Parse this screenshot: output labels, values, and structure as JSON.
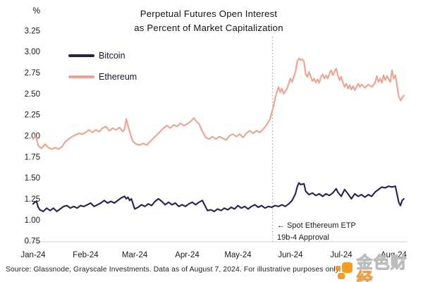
{
  "source_note": "Source: Glassnode, Grayscale Investments. Data as of August 7, 2024. For illustrative purposes only.",
  "watermark": {
    "text_main": "金色财",
    "text_accent": "经",
    "accent_color": "#f79c1b",
    "stroke_color": "#bcbcbc"
  },
  "chart_data": {
    "type": "line",
    "title": "Perpetual Futures Open Interest as Percent of Market Capitalization",
    "title_lines": [
      "Perpetual Futures Open Interest",
      "as Percent of Market Capitalization"
    ],
    "ylabel": "%",
    "xlabel": "",
    "ylim": [
      0.75,
      3.25
    ],
    "grid": false,
    "legend_position": "upper-left",
    "x_unit": "days since Jan 1, 2024",
    "y_ticks": [
      "3.25",
      "3.00",
      "2.75",
      "2.50",
      "2.25",
      "2.00",
      "1.75",
      "1.50",
      "1.25",
      "1.00",
      "0.75"
    ],
    "x_ticks": [
      {
        "label": "Jan-24",
        "day": 0
      },
      {
        "label": "Feb-24",
        "day": 31
      },
      {
        "label": "Mar-24",
        "day": 60
      },
      {
        "label": "Apr-24",
        "day": 91
      },
      {
        "label": "May-24",
        "day": 121
      },
      {
        "label": "Jun-24",
        "day": 152
      },
      {
        "label": "Jul-24",
        "day": 182
      },
      {
        "label": "Aug-24",
        "day": 213
      }
    ],
    "guideline": {
      "day": 141.5,
      "date": "May 23, 2024",
      "annotation": [
        "← Spot Ethereum ETP",
        "19b-4 Approval"
      ]
    },
    "series": [
      {
        "name": "Bitcoin",
        "color": "#262250",
        "points": [
          [
            0,
            1.19
          ],
          [
            1,
            1.21
          ],
          [
            2,
            1.22
          ],
          [
            3,
            1.15
          ],
          [
            4,
            1.12
          ],
          [
            6,
            1.1
          ],
          [
            8,
            1.14
          ],
          [
            10,
            1.11
          ],
          [
            12,
            1.14
          ],
          [
            14,
            1.1
          ],
          [
            16,
            1.13
          ],
          [
            18,
            1.16
          ],
          [
            20,
            1.17
          ],
          [
            22,
            1.14
          ],
          [
            24,
            1.16
          ],
          [
            26,
            1.14
          ],
          [
            28,
            1.17
          ],
          [
            30,
            1.16
          ],
          [
            32,
            1.18
          ],
          [
            34,
            1.2
          ],
          [
            36,
            1.16
          ],
          [
            38,
            1.18
          ],
          [
            40,
            1.2
          ],
          [
            42,
            1.23
          ],
          [
            44,
            1.2
          ],
          [
            46,
            1.22
          ],
          [
            48,
            1.2
          ],
          [
            50,
            1.23
          ],
          [
            52,
            1.26
          ],
          [
            54,
            1.28
          ],
          [
            55,
            1.25
          ],
          [
            56,
            1.27
          ],
          [
            57,
            1.23
          ],
          [
            58,
            1.25
          ],
          [
            59,
            1.19
          ],
          [
            60,
            1.13
          ],
          [
            62,
            1.15
          ],
          [
            64,
            1.18
          ],
          [
            66,
            1.16
          ],
          [
            68,
            1.19
          ],
          [
            70,
            1.17
          ],
          [
            72,
            1.22
          ],
          [
            74,
            1.25
          ],
          [
            76,
            1.22
          ],
          [
            78,
            1.18
          ],
          [
            80,
            1.21
          ],
          [
            82,
            1.18
          ],
          [
            84,
            1.2
          ],
          [
            86,
            1.16
          ],
          [
            88,
            1.18
          ],
          [
            90,
            1.16
          ],
          [
            92,
            1.19
          ],
          [
            94,
            1.21
          ],
          [
            96,
            1.18
          ],
          [
            98,
            1.21
          ],
          [
            100,
            1.23
          ],
          [
            101,
            1.19
          ],
          [
            103,
            1.11
          ],
          [
            105,
            1.12
          ],
          [
            107,
            1.1
          ],
          [
            109,
            1.13
          ],
          [
            111,
            1.11
          ],
          [
            113,
            1.14
          ],
          [
            115,
            1.12
          ],
          [
            117,
            1.15
          ],
          [
            119,
            1.13
          ],
          [
            121,
            1.17
          ],
          [
            123,
            1.14
          ],
          [
            125,
            1.16
          ],
          [
            127,
            1.13
          ],
          [
            129,
            1.16
          ],
          [
            131,
            1.18
          ],
          [
            133,
            1.15
          ],
          [
            135,
            1.17
          ],
          [
            137,
            1.14
          ],
          [
            139,
            1.16
          ],
          [
            141,
            1.15
          ],
          [
            143,
            1.17
          ],
          [
            145,
            1.16
          ],
          [
            147,
            1.18
          ],
          [
            149,
            1.16
          ],
          [
            151,
            1.19
          ],
          [
            153,
            1.23
          ],
          [
            155,
            1.31
          ],
          [
            156,
            1.39
          ],
          [
            157,
            1.44
          ],
          [
            158,
            1.42
          ],
          [
            160,
            1.43
          ],
          [
            161,
            1.34
          ],
          [
            163,
            1.3
          ],
          [
            165,
            1.32
          ],
          [
            167,
            1.29
          ],
          [
            169,
            1.31
          ],
          [
            171,
            1.28
          ],
          [
            173,
            1.31
          ],
          [
            175,
            1.29
          ],
          [
            177,
            1.32
          ],
          [
            179,
            1.37
          ],
          [
            180,
            1.33
          ],
          [
            182,
            1.28
          ],
          [
            184,
            1.36
          ],
          [
            186,
            1.31
          ],
          [
            188,
            1.25
          ],
          [
            190,
            1.31
          ],
          [
            192,
            1.28
          ],
          [
            194,
            1.3
          ],
          [
            196,
            1.27
          ],
          [
            198,
            1.3
          ],
          [
            200,
            1.28
          ],
          [
            202,
            1.33
          ],
          [
            204,
            1.36
          ],
          [
            206,
            1.39
          ],
          [
            208,
            1.38
          ],
          [
            210,
            1.4
          ],
          [
            212,
            1.39
          ],
          [
            214,
            1.4
          ],
          [
            216,
            1.21
          ],
          [
            217,
            1.17
          ],
          [
            218,
            1.23
          ],
          [
            219,
            1.25
          ]
        ]
      },
      {
        "name": "Ethereum",
        "color": "#f2a28e",
        "points": [
          [
            0,
            1.96
          ],
          [
            1,
            2.0
          ],
          [
            2,
            1.97
          ],
          [
            3,
            1.88
          ],
          [
            5,
            1.85
          ],
          [
            7,
            1.9
          ],
          [
            9,
            1.86
          ],
          [
            11,
            1.84
          ],
          [
            13,
            1.86
          ],
          [
            15,
            1.84
          ],
          [
            17,
            1.87
          ],
          [
            19,
            1.93
          ],
          [
            21,
            1.96
          ],
          [
            23,
            1.99
          ],
          [
            25,
            2.01
          ],
          [
            27,
            2.03
          ],
          [
            29,
            2.02
          ],
          [
            31,
            2.04
          ],
          [
            33,
            2.07
          ],
          [
            35,
            2.04
          ],
          [
            37,
            2.07
          ],
          [
            39,
            2.05
          ],
          [
            41,
            2.09
          ],
          [
            43,
            2.11
          ],
          [
            45,
            2.06
          ],
          [
            47,
            2.09
          ],
          [
            49,
            2.07
          ],
          [
            51,
            2.1
          ],
          [
            53,
            2.05
          ],
          [
            54,
            2.08
          ],
          [
            55,
            2.2
          ],
          [
            56,
            2.12
          ],
          [
            57,
            2.05
          ],
          [
            58,
            1.98
          ],
          [
            59,
            1.93
          ],
          [
            61,
            1.9
          ],
          [
            63,
            1.89
          ],
          [
            65,
            1.91
          ],
          [
            67,
            1.89
          ],
          [
            69,
            1.93
          ],
          [
            71,
            1.97
          ],
          [
            73,
            2.01
          ],
          [
            75,
            2.05
          ],
          [
            77,
            2.09
          ],
          [
            79,
            2.12
          ],
          [
            81,
            2.09
          ],
          [
            83,
            2.13
          ],
          [
            85,
            2.11
          ],
          [
            87,
            2.15
          ],
          [
            89,
            2.12
          ],
          [
            91,
            2.14
          ],
          [
            93,
            2.17
          ],
          [
            95,
            2.21
          ],
          [
            96,
            2.18
          ],
          [
            98,
            2.14
          ],
          [
            100,
            2.05
          ],
          [
            102,
            1.98
          ],
          [
            104,
            1.96
          ],
          [
            106,
            1.99
          ],
          [
            108,
            1.96
          ],
          [
            110,
            1.99
          ],
          [
            112,
            1.97
          ],
          [
            114,
            1.95
          ],
          [
            116,
            2.0
          ],
          [
            118,
            2.02
          ],
          [
            120,
            1.99
          ],
          [
            122,
            2.02
          ],
          [
            124,
            1.98
          ],
          [
            126,
            2.03
          ],
          [
            128,
            2.06
          ],
          [
            130,
            2.03
          ],
          [
            132,
            2.06
          ],
          [
            134,
            2.04
          ],
          [
            136,
            2.08
          ],
          [
            138,
            2.13
          ],
          [
            140,
            2.2
          ],
          [
            141,
            2.28
          ],
          [
            142,
            2.35
          ],
          [
            143,
            2.45
          ],
          [
            144,
            2.52
          ],
          [
            145,
            2.58
          ],
          [
            146,
            2.52
          ],
          [
            147,
            2.56
          ],
          [
            148,
            2.5
          ],
          [
            150,
            2.56
          ],
          [
            151,
            2.62
          ],
          [
            152,
            2.68
          ],
          [
            153,
            2.64
          ],
          [
            154,
            2.7
          ],
          [
            155,
            2.76
          ],
          [
            156,
            2.88
          ],
          [
            157,
            2.92
          ],
          [
            158,
            2.9
          ],
          [
            159,
            2.91
          ],
          [
            160,
            2.88
          ],
          [
            161,
            2.73
          ],
          [
            162,
            2.7
          ],
          [
            163,
            2.76
          ],
          [
            164,
            2.7
          ],
          [
            165,
            2.65
          ],
          [
            166,
            2.68
          ],
          [
            167,
            2.63
          ],
          [
            168,
            2.67
          ],
          [
            169,
            2.63
          ],
          [
            170,
            2.7
          ],
          [
            171,
            2.73
          ],
          [
            172,
            2.68
          ],
          [
            173,
            2.72
          ],
          [
            174,
            2.68
          ],
          [
            175,
            2.74
          ],
          [
            176,
            2.78
          ],
          [
            177,
            2.72
          ],
          [
            178,
            2.76
          ],
          [
            179,
            2.8
          ],
          [
            180,
            2.72
          ],
          [
            181,
            2.66
          ],
          [
            182,
            2.7
          ],
          [
            183,
            2.63
          ],
          [
            184,
            2.58
          ],
          [
            185,
            2.62
          ],
          [
            186,
            2.56
          ],
          [
            187,
            2.6
          ],
          [
            188,
            2.55
          ],
          [
            189,
            2.59
          ],
          [
            190,
            2.54
          ],
          [
            191,
            2.58
          ],
          [
            192,
            2.62
          ],
          [
            193,
            2.58
          ],
          [
            194,
            2.61
          ],
          [
            196,
            2.57
          ],
          [
            198,
            2.61
          ],
          [
            200,
            2.58
          ],
          [
            202,
            2.63
          ],
          [
            203,
            2.71
          ],
          [
            204,
            2.64
          ],
          [
            205,
            2.68
          ],
          [
            206,
            2.63
          ],
          [
            207,
            2.72
          ],
          [
            208,
            2.66
          ],
          [
            209,
            2.71
          ],
          [
            211,
            2.64
          ],
          [
            212,
            2.78
          ],
          [
            213,
            2.68
          ],
          [
            214,
            2.72
          ],
          [
            216,
            2.47
          ],
          [
            217,
            2.42
          ],
          [
            218,
            2.45
          ],
          [
            219,
            2.48
          ]
        ]
      }
    ]
  }
}
